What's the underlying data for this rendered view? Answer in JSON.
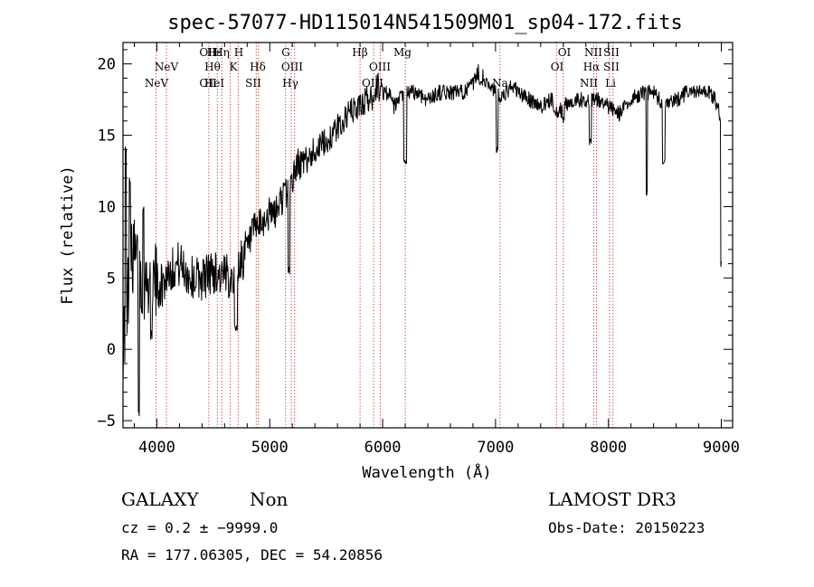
{
  "chart_data": {
    "type": "line",
    "title": "spec-57077-HD115014N541509M01_sp04-172.fits",
    "xlabel": "Wavelength (Å)",
    "ylabel": "Flux (relative)",
    "xlim": [
      3700,
      9100
    ],
    "ylim": [
      -5.5,
      21.5
    ],
    "x_ticks": [
      4000,
      5000,
      6000,
      7000,
      8000,
      9000
    ],
    "x_tick_labels": [
      "4000",
      "5000",
      "6000",
      "7000",
      "8000",
      "9000"
    ],
    "y_ticks": [
      -5,
      0,
      5,
      10,
      15,
      20
    ],
    "y_tick_labels": [
      "−5",
      "0",
      "5",
      "10",
      "15",
      "20"
    ],
    "grid": false,
    "series": [
      {
        "name": "flux",
        "anchors_x": [
          3700,
          3730,
          3760,
          3800,
          3850,
          3900,
          3950,
          4000,
          4050,
          4100,
          4200,
          4300,
          4400,
          4500,
          4600,
          4700,
          4800,
          4870,
          4900,
          5000,
          5050,
          5100,
          5150,
          5200,
          5250,
          5300,
          5400,
          5500,
          5600,
          5700,
          5800,
          5850,
          5900,
          5950,
          6000,
          6050,
          6100,
          6200,
          6300,
          6400,
          6500,
          6600,
          6700,
          6800,
          6850,
          6870,
          6900,
          6950,
          7000,
          7050,
          7100,
          7150,
          7200,
          7300,
          7400,
          7500,
          7550,
          7600,
          7700,
          7800,
          7900,
          8000,
          8100,
          8200,
          8300,
          8400,
          8500,
          8600,
          8700,
          8800,
          8900,
          8950,
          9000
        ],
        "anchors_y": [
          0.5,
          2.5,
          6.0,
          6.5,
          5.5,
          4.5,
          5.0,
          4.5,
          4.5,
          5.5,
          6.0,
          5.0,
          5.0,
          5.5,
          5.0,
          5.5,
          7.0,
          8.5,
          8.5,
          9.5,
          9.5,
          10.5,
          11.0,
          12.0,
          13.0,
          13.0,
          14.0,
          14.5,
          15.5,
          16.5,
          17.0,
          17.5,
          17.5,
          18.5,
          18.0,
          18.0,
          17.0,
          18.0,
          18.0,
          17.5,
          18.0,
          18.0,
          18.0,
          18.5,
          19.5,
          20.0,
          19.0,
          18.5,
          18.0,
          17.5,
          18.0,
          18.5,
          18.0,
          17.5,
          17.0,
          17.5,
          16.5,
          17.0,
          17.5,
          17.5,
          17.5,
          17.0,
          16.5,
          17.5,
          18.0,
          18.0,
          17.0,
          17.5,
          18.0,
          18.0,
          18.0,
          17.5,
          16.0
        ],
        "features": [
          {
            "x": 3725,
            "y": 14.0,
            "w": 6
          },
          {
            "x": 3760,
            "y": 12.0,
            "w": 6
          },
          {
            "x": 3840,
            "y": -4.5,
            "w": 5
          },
          {
            "x": 3880,
            "y": 10.0,
            "w": 6
          },
          {
            "x": 3950,
            "y": 1.0,
            "w": 8
          },
          {
            "x": 4700,
            "y": 1.5,
            "w": 15
          },
          {
            "x": 5170,
            "y": 5.5,
            "w": 8
          },
          {
            "x": 6200,
            "y": 13.0,
            "w": 12
          },
          {
            "x": 6870,
            "y": 18.5,
            "w": 15
          },
          {
            "x": 7015,
            "y": 14.0,
            "w": 8
          },
          {
            "x": 7600,
            "y": 16.0,
            "w": 8
          },
          {
            "x": 7840,
            "y": 14.5,
            "w": 8
          },
          {
            "x": 8340,
            "y": 11.0,
            "w": 6
          },
          {
            "x": 8490,
            "y": 13.0,
            "w": 10
          },
          {
            "x": 9000,
            "y": 6.0,
            "w": 6
          },
          {
            "x": 9005,
            "y": 0.0,
            "w": 4
          }
        ]
      }
    ],
    "lines": [
      {
        "wavelength": 3426,
        "label": "NeV",
        "row": 2
      },
      {
        "wavelength": 3869,
        "label": "NeV",
        "row": 1
      },
      {
        "wavelength": 3727,
        "label": "OII",
        "row": 0
      },
      {
        "wavelength": 3727,
        "label": "OII",
        "row": 2
      },
      {
        "wavelength": 3970,
        "label": "Hε",
        "row": 0
      },
      {
        "wavelength": 3889,
        "label": "Hθ",
        "row": 1
      },
      {
        "wavelength": 3889,
        "label": "HeI",
        "row": 2
      },
      {
        "wavelength": 3835,
        "label": "Hη",
        "row": 0
      },
      {
        "wavelength": 3969,
        "label": "H",
        "row": 0
      },
      {
        "wavelength": 3934,
        "label": "K",
        "row": 1
      },
      {
        "wavelength": 4102,
        "label": "Hδ",
        "row": 1
      },
      {
        "wavelength": 4072,
        "label": "SII",
        "row": 2
      },
      {
        "wavelength": 4304,
        "label": "G",
        "row": 0
      },
      {
        "wavelength": 4363,
        "label": "OIII",
        "row": 1
      },
      {
        "wavelength": 4341,
        "label": "Hγ",
        "row": 2
      },
      {
        "wavelength": 4861,
        "label": "Hβ",
        "row": 0
      },
      {
        "wavelength": 5007,
        "label": "OIII",
        "row": 1
      },
      {
        "wavelength": 4959,
        "label": "OIII",
        "row": 2
      },
      {
        "wavelength": 5175,
        "label": "Mg",
        "row": 0
      },
      {
        "wavelength": 5893,
        "label": "Na",
        "row": 2
      },
      {
        "wavelength": 6300,
        "label": "OI",
        "row": 0
      },
      {
        "wavelength": 6300,
        "label": "OI",
        "row": 1
      },
      {
        "wavelength": 6583,
        "label": "NII",
        "row": 0
      },
      {
        "wavelength": 6563,
        "label": "Hα",
        "row": 1
      },
      {
        "wavelength": 6548,
        "label": "NII",
        "row": 2
      },
      {
        "wavelength": 6716,
        "label": "SII",
        "row": 0
      },
      {
        "wavelength": 6731,
        "label": "SII",
        "row": 1
      },
      {
        "wavelength": 6707,
        "label": "Li",
        "row": 2
      }
    ],
    "line_positions": [
      3993,
      4085,
      4460,
      4535,
      4575,
      4650,
      4720,
      4880,
      4900,
      5140,
      5190,
      5220,
      5800,
      5920,
      5980,
      6200,
      7040,
      7540,
      7600,
      7870,
      7895,
      8010,
      8040
    ]
  },
  "info": {
    "object_class": "GALAXY",
    "subclass": "Non",
    "survey": "LAMOST DR3",
    "cz": "cz = 0.2 ± −9999.0",
    "obs_date": "Obs-Date: 20150223",
    "coords": "RA = 177.06305, DEC =  54.20856"
  },
  "colors": {
    "line_color": "#b22222",
    "spectrum": "#000000",
    "text": "#000000"
  }
}
